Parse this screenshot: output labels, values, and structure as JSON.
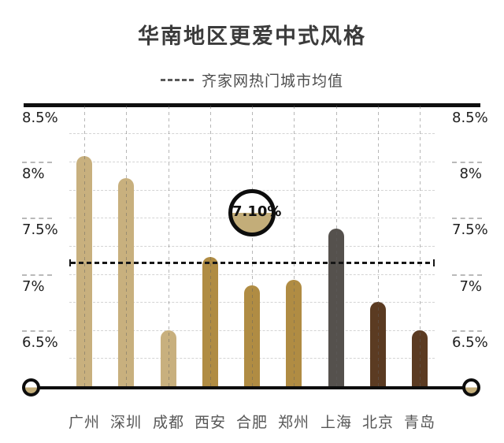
{
  "title": "华南地区更爱中式风格",
  "legend": {
    "label": "齐家网热门城市均值"
  },
  "colors": {
    "tan": "#c8b07e",
    "gold": "#b08c43",
    "dark_gray": "#55514d",
    "brown": "#5b3b22",
    "axis_black": "#0d0d0d",
    "badge_fill": "#c3ad79",
    "grid_gray": "#d4d4d4",
    "label_gray": "#575757"
  },
  "chart_data": {
    "type": "bar",
    "title": "华南地区更爱中式风格",
    "legend": "齐家网热门城市均值",
    "categories": [
      "广州",
      "深圳",
      "成都",
      "西安",
      "合肥",
      "郑州",
      "上海",
      "北京",
      "青岛"
    ],
    "values": [
      8.05,
      7.85,
      6.5,
      7.15,
      6.9,
      6.95,
      7.4,
      6.75,
      6.5
    ],
    "bar_colors": [
      "#c8b07e",
      "#c8b07e",
      "#c8b07e",
      "#b08c43",
      "#b08c43",
      "#b08c43",
      "#55514d",
      "#5b3b22",
      "#5b3b22"
    ],
    "mean": {
      "value": 7.1,
      "label": "7.10%",
      "badge_over_category": "合肥"
    },
    "y_axis": {
      "min": 6,
      "max": 8.5,
      "tick_labels": [
        "8.5%",
        "8%",
        "7.5%",
        "7%",
        "6.5%"
      ],
      "tick_values": [
        8.5,
        8,
        7.5,
        7,
        6.5
      ],
      "minor_step": 0.25,
      "label_sides": "both"
    },
    "grid": true,
    "legend_position": "top-center"
  }
}
